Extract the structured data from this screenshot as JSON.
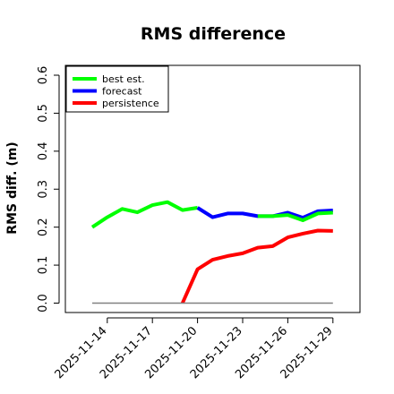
{
  "chart_data": {
    "type": "line",
    "title": "RMS difference",
    "ylabel": "RMS diff. (m)",
    "xlabel": "",
    "ylim": [
      0,
      0.6
    ],
    "yticks": [
      0.0,
      0.1,
      0.2,
      0.3,
      0.4,
      0.5,
      0.6
    ],
    "ytick_labels": [
      "0.0",
      "0.1",
      "0.2",
      "0.3",
      "0.4",
      "0.5",
      "0.6"
    ],
    "xlim": [
      "2025-11-13",
      "2025-11-30"
    ],
    "xticks": [
      "2025-11-14",
      "2025-11-17",
      "2025-11-20",
      "2025-11-23",
      "2025-11-26",
      "2025-11-29"
    ],
    "xtick_colors": [
      "#000000",
      "#000000",
      "#228b22",
      "#000000",
      "#000000",
      "#000000"
    ],
    "grid": false,
    "legend_position": "top-left",
    "series": [
      {
        "name": "best est.",
        "color": "#00ff00",
        "x": [
          "2025-11-13",
          "2025-11-14",
          "2025-11-15",
          "2025-11-16",
          "2025-11-17",
          "2025-11-18",
          "2025-11-19",
          "2025-11-20"
        ],
        "values": [
          0.2,
          0.226,
          0.248,
          0.239,
          0.258,
          0.266,
          0.245,
          0.251
        ]
      },
      {
        "name": "forecast",
        "color": "#0000ff",
        "x": [
          "2025-11-20",
          "2025-11-21",
          "2025-11-22",
          "2025-11-23",
          "2025-11-24",
          "2025-11-25",
          "2025-11-26",
          "2025-11-27",
          "2025-11-28",
          "2025-11-29"
        ],
        "values": [
          0.251,
          0.226,
          0.236,
          0.236,
          0.229,
          0.229,
          0.238,
          0.225,
          0.242,
          0.244
        ]
      },
      {
        "name": "best est.",
        "color": "#00ff00",
        "x": [
          "2025-11-24",
          "2025-11-25",
          "2025-11-26",
          "2025-11-27",
          "2025-11-28",
          "2025-11-29"
        ],
        "values": [
          0.229,
          0.229,
          0.232,
          0.218,
          0.236,
          0.238
        ]
      },
      {
        "name": "persistence",
        "color": "#ff0000",
        "x": [
          "2025-11-19",
          "2025-11-20",
          "2025-11-21",
          "2025-11-22",
          "2025-11-23",
          "2025-11-24",
          "2025-11-25",
          "2025-11-26",
          "2025-11-27",
          "2025-11-28",
          "2025-11-29"
        ],
        "values": [
          0.0,
          0.089,
          0.114,
          0.124,
          0.131,
          0.146,
          0.15,
          0.173,
          0.183,
          0.191,
          0.19
        ]
      },
      {
        "name": "",
        "color": "#808080",
        "x": [
          "2025-11-13",
          "2025-11-29"
        ],
        "values": [
          0.0,
          0.0
        ]
      }
    ],
    "legend": [
      {
        "label": "best est.",
        "color": "#00ff00"
      },
      {
        "label": "forecast",
        "color": "#0000ff"
      },
      {
        "label": "persistence",
        "color": "#ff0000"
      }
    ]
  }
}
